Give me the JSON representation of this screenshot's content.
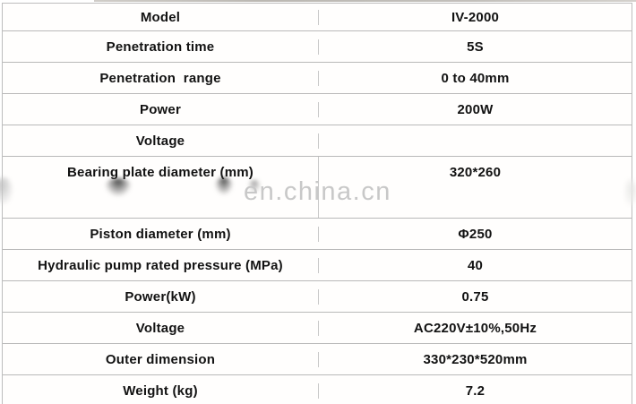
{
  "table": {
    "rows": [
      {
        "label": "Model",
        "value": "IV-2000"
      },
      {
        "label": "Penetration time",
        "value": "5S"
      },
      {
        "label": "Penetration  range",
        "value": "0 to 40mm"
      },
      {
        "label": "Power",
        "value": "200W"
      },
      {
        "label": "Voltage",
        "value": ""
      },
      {
        "label": "Bearing plate diameter (mm)",
        "value": "320*260"
      },
      {
        "label": "Piston diameter (mm)",
        "value": "Φ250"
      },
      {
        "label": "Hydraulic pump rated pressure (MPa)",
        "value": "40"
      },
      {
        "label": "Power(kW)",
        "value": "0.75"
      },
      {
        "label": "Voltage",
        "value": "AC220V±10%,50Hz"
      },
      {
        "label": "Outer dimension",
        "value": "330*230*520mm"
      },
      {
        "label": "Weight (kg)",
        "value": "7.2"
      }
    ]
  },
  "watermark": {
    "text": "en.china.cn"
  },
  "colors": {
    "border_horizontal": "#b9b9b9",
    "border_vertical": "#c9c9c9",
    "text": "#121212",
    "watermark": "#c8c8c8",
    "background": "#ffffff"
  }
}
